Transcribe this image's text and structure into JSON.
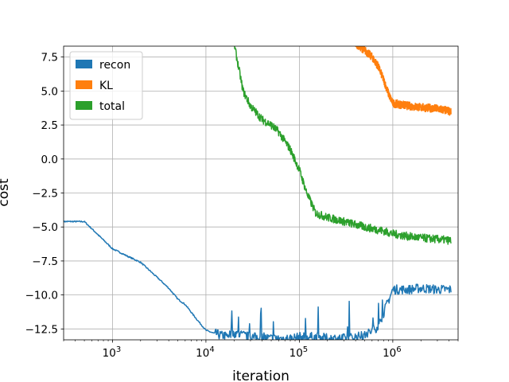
{
  "chart_data": {
    "type": "line",
    "title": "",
    "xlabel": "iteration",
    "ylabel": "cost",
    "x_scale": "log",
    "xlim": [
      300,
      5000000
    ],
    "ylim": [
      -13.3,
      8.3
    ],
    "grid": true,
    "legend_position": "top-left",
    "x_ticks": [
      {
        "value": 1000,
        "base": "10",
        "exp": "3"
      },
      {
        "value": 10000,
        "base": "10",
        "exp": "4"
      },
      {
        "value": 100000,
        "base": "10",
        "exp": "5"
      },
      {
        "value": 1000000,
        "base": "10",
        "exp": "6"
      }
    ],
    "y_ticks": [
      {
        "value": 7.5,
        "label": "7.5"
      },
      {
        "value": 5.0,
        "label": "5.0"
      },
      {
        "value": 2.5,
        "label": "2.5"
      },
      {
        "value": 0.0,
        "label": "0.0"
      },
      {
        "value": -2.5,
        "label": "−2.5"
      },
      {
        "value": -5.0,
        "label": "−5.0"
      },
      {
        "value": -7.5,
        "label": "−7.5"
      },
      {
        "value": -10.0,
        "label": "−10.0"
      },
      {
        "value": -12.5,
        "label": "−12.5"
      }
    ],
    "series": [
      {
        "name": "recon",
        "color": "#1f77b4",
        "x": [
          300,
          500,
          1000,
          1500,
          2000,
          3000,
          4000,
          5000,
          6000,
          8000,
          10000,
          12000,
          15000,
          20000,
          30000,
          50000,
          80000,
          100000,
          150000,
          200000,
          300000,
          500000,
          700000,
          1000000,
          1500000,
          2000000,
          3000000,
          4200000
        ],
        "y": [
          -4.6,
          -4.6,
          -6.6,
          -7.2,
          -7.6,
          -8.7,
          -9.5,
          -10.3,
          -10.7,
          -11.8,
          -12.6,
          -12.8,
          -13.0,
          -12.8,
          -13.1,
          -13.2,
          -13.2,
          -13.1,
          -13.1,
          -13.2,
          -13.2,
          -13.0,
          -12.3,
          -9.6,
          -9.6,
          -9.5,
          -9.6,
          -9.6
        ]
      },
      {
        "name": "KL",
        "color": "#ff7f0e",
        "x": [
          400000,
          500000,
          600000,
          700000,
          800000,
          900000,
          1000000,
          1500000,
          2000000,
          3000000,
          4200000
        ],
        "y": [
          8.5,
          8.0,
          7.5,
          6.8,
          5.8,
          4.8,
          4.1,
          3.9,
          3.8,
          3.7,
          3.5
        ]
      },
      {
        "name": "total",
        "color": "#2ca02c",
        "x": [
          20000,
          22000,
          25000,
          30000,
          40000,
          50000,
          60000,
          80000,
          100000,
          120000,
          150000,
          200000,
          300000,
          500000,
          800000,
          1000000,
          1500000,
          2000000,
          3000000,
          4200000
        ],
        "y": [
          8.5,
          7.0,
          5.0,
          3.9,
          2.9,
          2.5,
          2.0,
          0.7,
          -0.8,
          -2.5,
          -4.0,
          -4.3,
          -4.6,
          -5.0,
          -5.3,
          -5.5,
          -5.7,
          -5.8,
          -5.9,
          -6.0
        ]
      }
    ]
  }
}
